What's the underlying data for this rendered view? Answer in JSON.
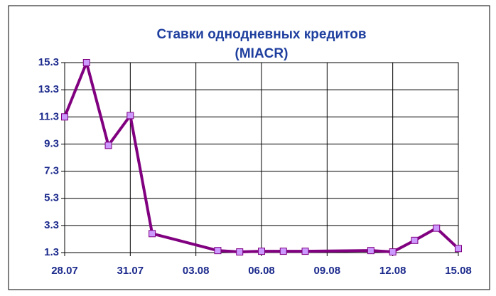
{
  "chart_data": {
    "type": "line",
    "title": [
      "Ставки однодневных кредитов",
      "(MIACR)"
    ],
    "x": [
      0,
      1,
      2,
      3,
      4,
      7,
      8,
      9,
      10,
      11,
      14,
      15,
      16,
      17,
      18
    ],
    "series": [
      {
        "name": "MIACR",
        "color": "#800080",
        "marker_color": "#cc99ff",
        "values": [
          11.3,
          15.3,
          9.2,
          11.4,
          2.7,
          1.45,
          1.35,
          1.4,
          1.4,
          1.4,
          1.45,
          1.35,
          2.2,
          3.1,
          1.6
        ]
      }
    ],
    "xlim": [
      0,
      18
    ],
    "xticks": [
      {
        "value": 0,
        "label": "28.07"
      },
      {
        "value": 3,
        "label": "31.07"
      },
      {
        "value": 6,
        "label": "03.08"
      },
      {
        "value": 9,
        "label": "06.08"
      },
      {
        "value": 12,
        "label": "09.08"
      },
      {
        "value": 15,
        "label": "12.08"
      },
      {
        "value": 18,
        "label": "15.08"
      }
    ],
    "ylim": [
      1.3,
      15.3
    ],
    "yticks": [
      1.3,
      3.3,
      5.3,
      7.3,
      9.3,
      11.3,
      13.3,
      15.3
    ],
    "grid": true
  }
}
